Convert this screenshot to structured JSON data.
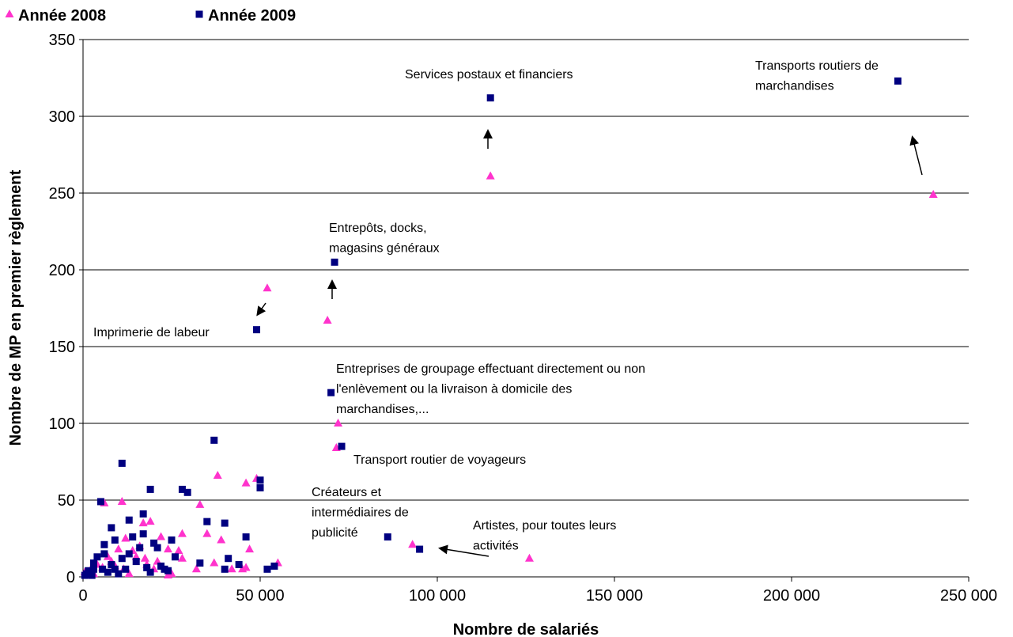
{
  "chart_data": {
    "type": "scatter",
    "xlabel": "Nombre de salariés",
    "ylabel": "Nombre de MP en premier règlement",
    "xlim": [
      0,
      250000
    ],
    "ylim": [
      0,
      350
    ],
    "xticks": [
      0,
      {
        "value": 50000,
        "label": "50 000"
      },
      {
        "value": 100000,
        "label": "100 000"
      },
      {
        "value": 150000,
        "label": "150 000"
      },
      {
        "value": 200000,
        "label": "200 000"
      },
      {
        "value": 250000,
        "label": "250 000"
      }
    ],
    "yticks": [
      0,
      50,
      100,
      150,
      200,
      250,
      300,
      350
    ],
    "grid": true,
    "legend": "top-left",
    "series": [
      {
        "name": "Année 2008",
        "color": "#ff33cc",
        "marker": "triangle",
        "x": [
          240000,
          115000,
          52000,
          69000,
          72000,
          71500,
          93000,
          126000,
          38000,
          46000,
          49000,
          33000,
          11000,
          17000,
          19000,
          35000,
          39000,
          47000,
          28000,
          6000,
          12000,
          22000,
          27000,
          37000,
          42000,
          45000,
          46000,
          55000,
          32000,
          24000,
          16000,
          14000,
          10000,
          8000,
          4000,
          2000,
          500,
          1000,
          7000,
          13000,
          18000,
          21000,
          25000,
          24000,
          28000,
          9000,
          15000,
          3000,
          5500,
          20000,
          11500,
          17500
        ],
        "values": [
          249,
          261,
          188,
          167,
          100,
          84,
          21,
          12,
          66,
          61,
          64,
          47,
          49,
          35,
          36,
          28,
          24,
          18,
          28,
          48,
          25,
          26,
          17,
          9,
          5,
          5,
          6,
          9,
          5,
          18,
          20,
          17,
          18,
          10,
          8,
          4,
          3,
          1,
          13,
          2,
          8,
          10,
          2,
          1,
          12,
          7,
          13,
          2,
          6,
          5,
          5,
          12
        ]
      },
      {
        "name": "Année 2009",
        "color": "#000080",
        "marker": "square",
        "x": [
          230000,
          115000,
          71000,
          49000,
          70000,
          73000,
          86000,
          95000,
          37000,
          11000,
          19000,
          28000,
          29500,
          50000,
          50000,
          5000,
          17000,
          35000,
          40000,
          13000,
          46000,
          25000,
          8000,
          6000,
          21000,
          14000,
          9000,
          33000,
          44000,
          41000,
          54000,
          52000,
          40000,
          3000,
          4000,
          2000,
          1000,
          500,
          7000,
          10000,
          12000,
          15000,
          18000,
          22000,
          24000,
          26000,
          16000,
          20000,
          8000,
          11000,
          6000,
          3000,
          1500,
          9000,
          13000,
          17000,
          19000,
          23000,
          5500,
          2500
        ],
        "values": [
          323,
          312,
          205,
          161,
          120,
          85,
          26,
          18,
          89,
          74,
          57,
          57,
          55,
          63,
          58,
          49,
          41,
          36,
          35,
          37,
          26,
          24,
          32,
          21,
          19,
          26,
          24,
          9,
          8,
          12,
          7,
          5,
          5,
          5,
          13,
          3,
          2,
          1,
          3,
          2,
          5,
          10,
          6,
          7,
          4,
          13,
          19,
          22,
          8,
          12,
          15,
          9,
          4,
          5,
          15,
          28,
          3,
          5,
          5,
          1
        ]
      }
    ],
    "annotations": [
      [
        "Services postaux et financiers"
      ],
      [
        "Transports routiers de",
        "marchandises"
      ],
      [
        "Entrepôts, docks,",
        "magasins généraux"
      ],
      [
        "Imprimerie de labeur"
      ],
      [
        "Entreprises de groupage effectuant directement ou non",
        "l'enlèvement ou la livraison à domicile des",
        "marchandises,..."
      ],
      [
        "Transport routier de voyageurs"
      ],
      [
        "Créateurs et",
        "intermédiaires de",
        "publicité"
      ],
      [
        "Artistes, pour toutes leurs",
        "activités"
      ]
    ]
  }
}
